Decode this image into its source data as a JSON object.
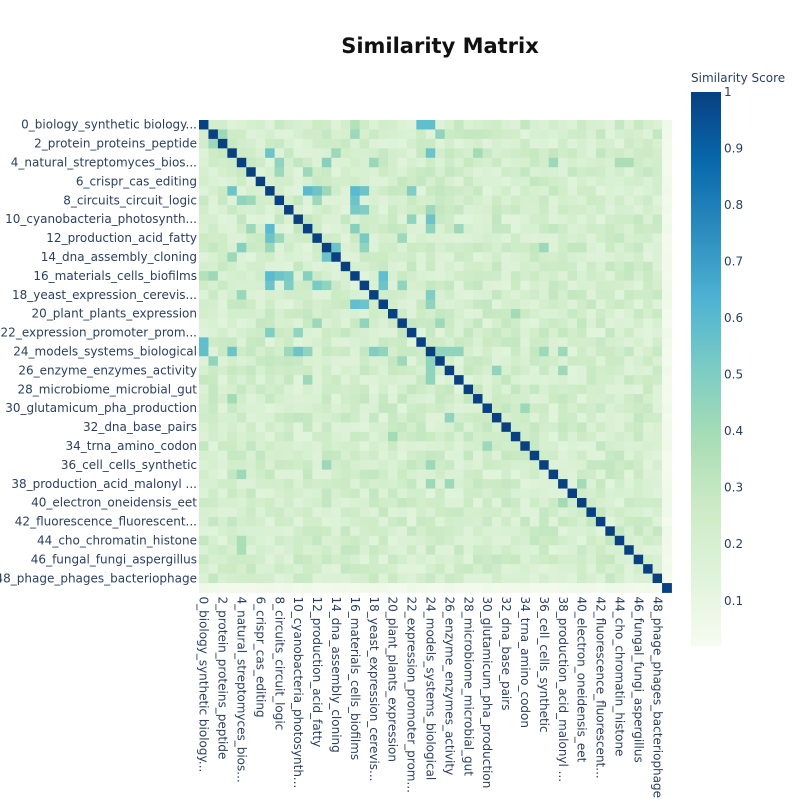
{
  "chart_data": {
    "type": "heatmap",
    "title": "Similarity Matrix",
    "colorbar": {
      "title": "Similarity Score",
      "ticks": [
        "0.1",
        "0.2",
        "0.3",
        "0.4",
        "0.5",
        "0.6",
        "0.7",
        "0.8",
        "0.9",
        "1"
      ],
      "tick_values": [
        0.1,
        0.2,
        0.3,
        0.4,
        0.5,
        0.6,
        0.7,
        0.8,
        0.9,
        1.0
      ],
      "range": [
        0.02,
        1.0
      ],
      "colorscale": [
        [
          0.0,
          "#f7fcf0"
        ],
        [
          0.125,
          "#e0f3db"
        ],
        [
          0.25,
          "#ccebc5"
        ],
        [
          0.375,
          "#a8ddb5"
        ],
        [
          0.5,
          "#7bccc4"
        ],
        [
          0.625,
          "#4eb3d3"
        ],
        [
          0.75,
          "#2b8cbe"
        ],
        [
          0.875,
          "#0868ac"
        ],
        [
          1.0,
          "#084081"
        ]
      ]
    },
    "n": 50,
    "tick_labels": [
      "0_biology_synthetic biology...",
      "2_protein_proteins_peptide",
      "4_natural_streptomyces_bios...",
      "6_crispr_cas_editing",
      "8_circuits_circuit_logic",
      "10_cyanobacteria_photosynth...",
      "12_production_acid_fatty",
      "14_dna_assembly_cloning",
      "16_materials_cells_biofilms",
      "18_yeast_expression_cerevis...",
      "20_plant_plants_expression",
      "22_expression_promoter_prom...",
      "24_models_systems_biological",
      "26_enzyme_enzymes_activity",
      "28_microbiome_microbial_gut",
      "30_glutamicum_pha_production",
      "32_dna_base_pairs",
      "34_trna_amino_codon",
      "36_cell_cells_synthetic",
      "38_production_acid_malonyl ...",
      "40_electron_oneidensis_eet",
      "42_fluorescence_fluorescent...",
      "44_cho_chromatin_histone",
      "46_fungal_fungi_aspergillus",
      "48_phage_phages_bacteriophage"
    ],
    "tick_indices": [
      0,
      2,
      4,
      6,
      8,
      10,
      12,
      14,
      16,
      18,
      20,
      22,
      24,
      26,
      28,
      30,
      32,
      34,
      36,
      38,
      40,
      42,
      44,
      46,
      48
    ],
    "background_similarity_approx": 0.22,
    "notable_pairs_approx": [
      {
        "i": 0,
        "j": 23,
        "v": 0.58
      },
      {
        "i": 0,
        "j": 24,
        "v": 0.58
      },
      {
        "i": 0,
        "j": 16,
        "v": 0.35
      },
      {
        "i": 1,
        "j": 2,
        "v": 0.42
      },
      {
        "i": 1,
        "j": 16,
        "v": 0.42
      },
      {
        "i": 1,
        "j": 25,
        "v": 0.45
      },
      {
        "i": 3,
        "j": 7,
        "v": 0.55
      },
      {
        "i": 3,
        "j": 24,
        "v": 0.55
      },
      {
        "i": 3,
        "j": 14,
        "v": 0.42
      },
      {
        "i": 4,
        "j": 8,
        "v": 0.45
      },
      {
        "i": 4,
        "j": 13,
        "v": 0.48
      },
      {
        "i": 4,
        "j": 18,
        "v": 0.43
      },
      {
        "i": 5,
        "j": 8,
        "v": 0.42
      },
      {
        "i": 5,
        "j": 11,
        "v": 0.42
      },
      {
        "i": 7,
        "j": 11,
        "v": 0.6
      },
      {
        "i": 7,
        "j": 12,
        "v": 0.55
      },
      {
        "i": 7,
        "j": 16,
        "v": 0.6
      },
      {
        "i": 7,
        "j": 17,
        "v": 0.55
      },
      {
        "i": 7,
        "j": 22,
        "v": 0.5
      },
      {
        "i": 7,
        "j": 13,
        "v": 0.42
      },
      {
        "i": 8,
        "j": 16,
        "v": 0.55
      },
      {
        "i": 8,
        "j": 12,
        "v": 0.42
      },
      {
        "i": 9,
        "j": 16,
        "v": 0.52
      },
      {
        "i": 9,
        "j": 17,
        "v": 0.5
      },
      {
        "i": 9,
        "j": 24,
        "v": 0.42
      },
      {
        "i": 10,
        "j": 22,
        "v": 0.45
      },
      {
        "i": 11,
        "j": 16,
        "v": 0.48
      },
      {
        "i": 11,
        "j": 24,
        "v": 0.45
      },
      {
        "i": 12,
        "j": 17,
        "v": 0.52
      },
      {
        "i": 12,
        "j": 21,
        "v": 0.42
      },
      {
        "i": 13,
        "j": 14,
        "v": 0.55
      },
      {
        "i": 13,
        "j": 17,
        "v": 0.45
      },
      {
        "i": 16,
        "j": 19,
        "v": 0.58
      },
      {
        "i": 17,
        "j": 19,
        "v": 0.55
      },
      {
        "i": 17,
        "j": 21,
        "v": 0.45
      },
      {
        "i": 18,
        "j": 24,
        "v": 0.5
      },
      {
        "i": 19,
        "j": 24,
        "v": 0.45
      },
      {
        "i": 21,
        "j": 25,
        "v": 0.42
      },
      {
        "i": 24,
        "j": 10,
        "v": 0.55
      },
      {
        "i": 24,
        "j": 25,
        "v": 0.45
      },
      {
        "i": 24,
        "j": 26,
        "v": 0.45
      },
      {
        "i": 24,
        "j": 27,
        "v": 0.45
      },
      {
        "i": 24,
        "j": 38,
        "v": 0.42
      },
      {
        "i": 26,
        "j": 31,
        "v": 0.45
      },
      {
        "i": 26,
        "j": 38,
        "v": 0.42
      },
      {
        "i": 30,
        "j": 34,
        "v": 0.42
      },
      {
        "i": 37,
        "j": 4,
        "v": 0.42
      },
      {
        "i": 38,
        "j": 40,
        "v": 0.4
      },
      {
        "i": 44,
        "j": 4,
        "v": 0.38
      },
      {
        "i": 45,
        "j": 4,
        "v": 0.38
      },
      {
        "i": 36,
        "j": 13,
        "v": 0.42
      },
      {
        "i": 36,
        "j": 24,
        "v": 0.42
      },
      {
        "i": 33,
        "j": 20,
        "v": 0.4
      },
      {
        "i": 29,
        "j": 3,
        "v": 0.4
      },
      {
        "i": 27,
        "j": 11,
        "v": 0.42
      }
    ],
    "last_index_similarity_approx": 0.04,
    "xlabel": "",
    "ylabel": ""
  }
}
